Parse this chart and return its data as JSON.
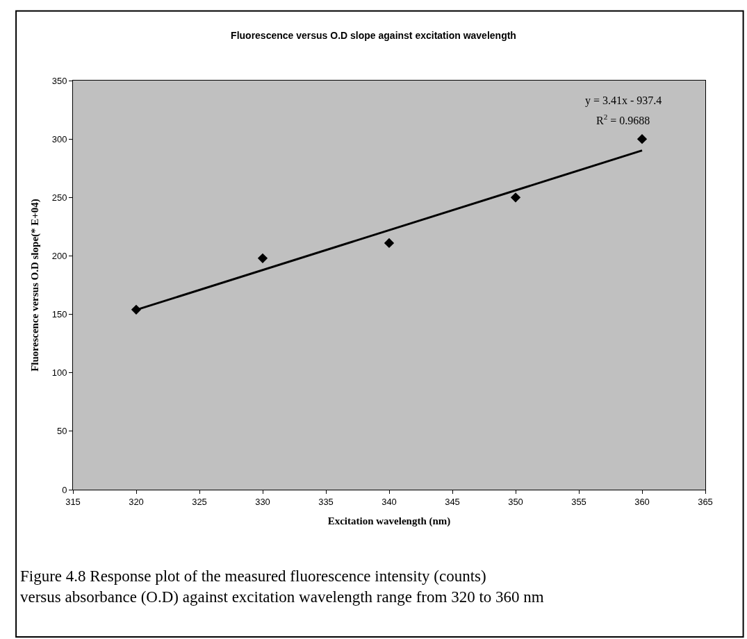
{
  "chart_data": {
    "type": "scatter",
    "title": "Fluorescence versus O.D slope against excitation wavelength",
    "xlabel": "Excitation wavelength (nm)",
    "ylabel": "Fluorescence versus O.D slope(* E+04)",
    "x": [
      320,
      330,
      340,
      350,
      360
    ],
    "series": [
      {
        "color": "#000000",
        "values": [
          154,
          198,
          211,
          250,
          300
        ],
        "marker": "diamond"
      },
      {
        "type": "line",
        "color": "#000000",
        "x": [
          320,
          360
        ],
        "values": [
          153.8,
          290.2
        ],
        "marker": "none",
        "line_style": "solid"
      }
    ],
    "xlim": [
      315,
      365
    ],
    "xticks": [
      315,
      320,
      325,
      330,
      335,
      340,
      345,
      350,
      355,
      360,
      365
    ],
    "ylim": [
      0,
      350
    ],
    "yticks": [
      0,
      50,
      100,
      150,
      200,
      250,
      300,
      350
    ],
    "grid": false,
    "annotations": [
      "y = 3.41x - 937.4",
      "R$^{2}$ = 0.9688",
      "Figure 4.8 Response plot of the measured fluorescence intensity (counts) versus absorbance (O.D) against excitation wavelength range from 320 to 360 nm"
    ]
  }
}
